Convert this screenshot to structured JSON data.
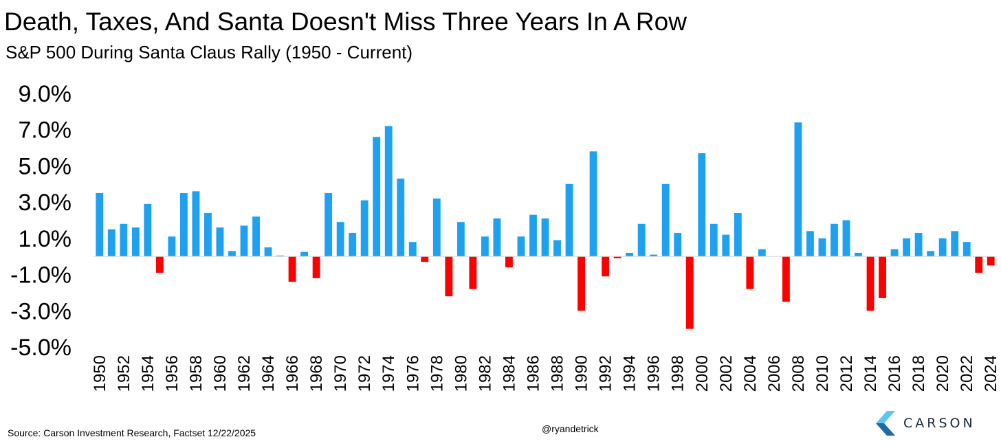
{
  "header": {
    "title": "Death, Taxes, And Santa Doesn't Miss Three Years In A Row",
    "subtitle": "S&P 500 During Santa Claus Rally (1950 - Current)"
  },
  "footer": {
    "source": "Source: Carson Investment Research, Factset 12/22/2025",
    "handle": "@ryandetrick",
    "logo_text": "CARSON"
  },
  "colors": {
    "positive": "#1fa1f2",
    "negative": "#ff0000",
    "logo_light": "#5bc7f0",
    "logo_dark": "#1f6aa8"
  },
  "chart_data": {
    "type": "bar",
    "title": "S&P 500 During Santa Claus Rally (1950 - Current)",
    "xlabel": "",
    "ylabel": "",
    "ylim": [
      -5.0,
      9.0
    ],
    "yticks": [
      "9.0%",
      "7.0%",
      "5.0%",
      "3.0%",
      "1.0%",
      "-1.0%",
      "-3.0%",
      "-5.0%"
    ],
    "ytick_values": [
      9,
      7,
      5,
      3,
      1,
      -1,
      -3,
      -5
    ],
    "grid": false,
    "legend": "none",
    "categories": [
      1950,
      1951,
      1952,
      1953,
      1954,
      1955,
      1956,
      1957,
      1958,
      1959,
      1960,
      1961,
      1962,
      1963,
      1964,
      1965,
      1966,
      1967,
      1968,
      1969,
      1970,
      1971,
      1972,
      1973,
      1974,
      1975,
      1976,
      1977,
      1978,
      1979,
      1980,
      1981,
      1982,
      1983,
      1984,
      1985,
      1986,
      1987,
      1988,
      1989,
      1990,
      1991,
      1992,
      1993,
      1994,
      1995,
      1996,
      1997,
      1998,
      1999,
      2000,
      2001,
      2002,
      2003,
      2004,
      2005,
      2006,
      2007,
      2008,
      2009,
      2010,
      2011,
      2012,
      2013,
      2014,
      2015,
      2016,
      2017,
      2018,
      2019,
      2020,
      2021,
      2022,
      2023,
      2024
    ],
    "x_tick_labels": [
      "1950",
      "1952",
      "1954",
      "1956",
      "1958",
      "1960",
      "1962",
      "1964",
      "1966",
      "1968",
      "1970",
      "1972",
      "1974",
      "1976",
      "1978",
      "1980",
      "1982",
      "1984",
      "1986",
      "1988",
      "1990",
      "1992",
      "1994",
      "1996",
      "1998",
      "2000",
      "2002",
      "2004",
      "2006",
      "2008",
      "2010",
      "2012",
      "2014",
      "2016",
      "2018",
      "2020",
      "2022",
      "2024"
    ],
    "values": [
      3.5,
      1.5,
      1.8,
      1.6,
      2.9,
      -0.9,
      1.1,
      3.5,
      3.6,
      2.4,
      1.6,
      0.3,
      1.7,
      2.2,
      0.5,
      0.05,
      -1.4,
      0.25,
      -1.2,
      3.5,
      1.9,
      1.3,
      3.1,
      6.6,
      7.2,
      4.3,
      0.8,
      -0.3,
      3.2,
      -2.2,
      1.9,
      -1.8,
      1.1,
      2.1,
      -0.6,
      1.1,
      2.3,
      2.1,
      0.9,
      4.0,
      -3.0,
      5.8,
      -1.1,
      -0.1,
      0.2,
      1.8,
      0.1,
      4.0,
      1.3,
      -4.0,
      5.7,
      1.8,
      1.2,
      2.4,
      -1.8,
      0.4,
      0.0,
      -2.5,
      7.4,
      1.4,
      1.0,
      1.8,
      2.0,
      0.2,
      -3.0,
      -2.3,
      0.4,
      1.0,
      1.3,
      0.3,
      1.0,
      1.4,
      0.8,
      -0.9,
      -0.5
    ]
  }
}
